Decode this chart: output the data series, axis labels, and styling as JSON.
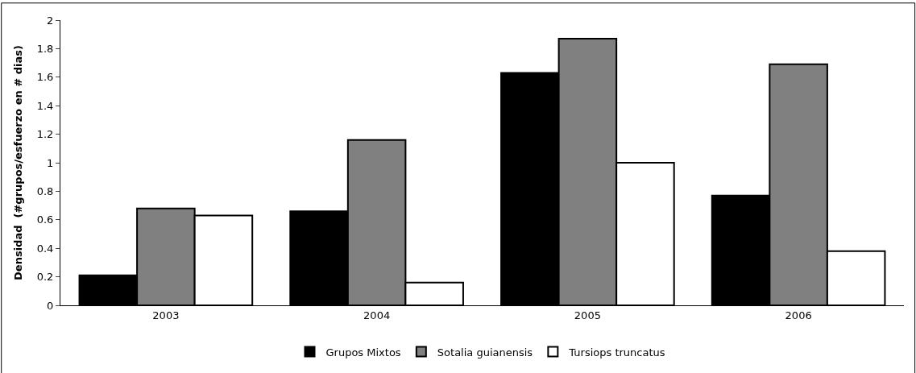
{
  "chart_data": {
    "type": "bar",
    "ylabel": "Densidad  (#grupos/esfuerzo en # dias)",
    "categories": [
      "2003",
      "2004",
      "2005",
      "2006"
    ],
    "series": [
      {
        "name": "Grupos Mixtos",
        "color": "#000000",
        "values": [
          0.21,
          0.66,
          1.63,
          0.77
        ]
      },
      {
        "name": "Sotalia guianensis",
        "color": "#808080",
        "values": [
          0.68,
          1.16,
          1.87,
          1.69
        ]
      },
      {
        "name": "Tursiops truncatus",
        "color": "#ffffff",
        "values": [
          0.63,
          0.16,
          1.0,
          0.38
        ]
      }
    ],
    "ylim": [
      0,
      2
    ],
    "yticks": [
      0,
      0.2,
      0.4,
      0.6,
      0.8,
      1,
      1.2,
      1.4,
      1.6,
      1.8,
      2
    ],
    "legend": "bottom"
  }
}
